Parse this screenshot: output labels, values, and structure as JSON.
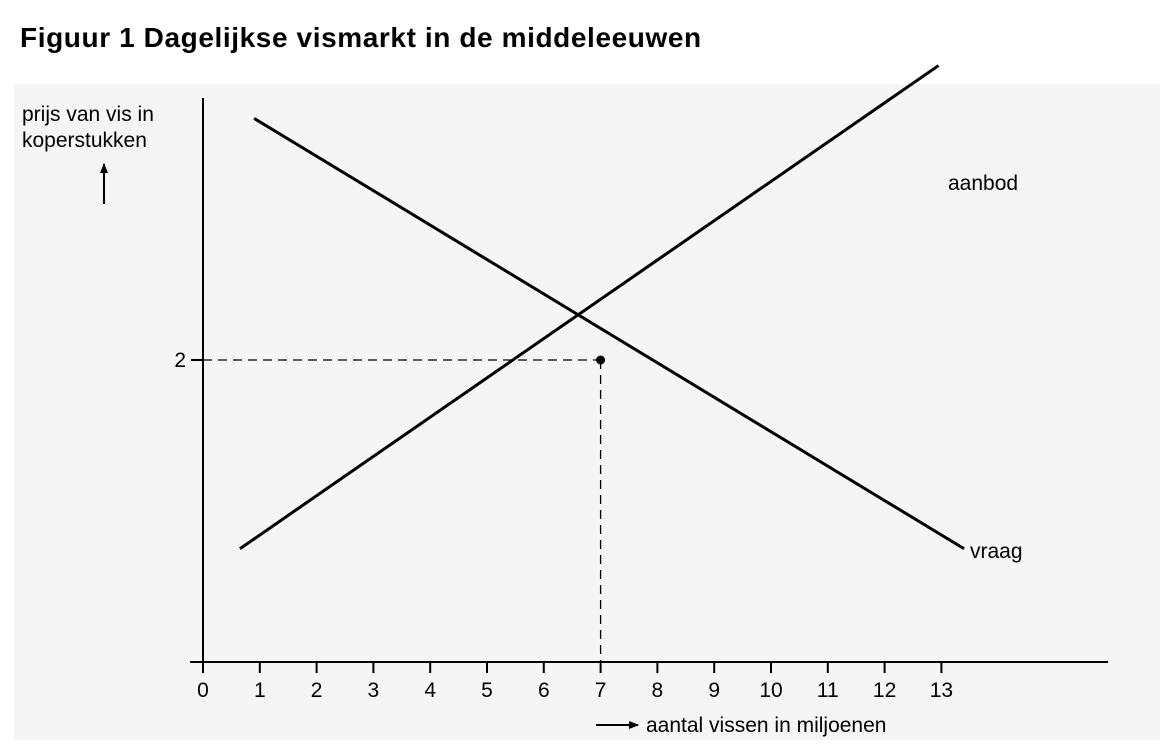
{
  "chart_data": {
    "type": "line",
    "title": "Figuur 1  Dagelijkse vismarkt in de middeleeuwen",
    "ylabel": [
      "prijs van vis in",
      "koperstukken"
    ],
    "xlabel": "aantal vissen in miljoenen",
    "xlim": [
      0,
      15.5
    ],
    "ylim": [
      0,
      5.2
    ],
    "xticks": [
      "0",
      "1",
      "2",
      "3",
      "4",
      "5",
      "6",
      "7",
      "8",
      "9",
      "10",
      "11",
      "12",
      "13"
    ],
    "yticks": [
      {
        "value": 2,
        "label": "2"
      }
    ],
    "equilibrium": {
      "x": 7,
      "y": 2
    },
    "series": [
      {
        "name": "aanbod",
        "points": [
          [
            0.65,
            0.75
          ],
          [
            12.95,
            3.95
          ]
        ]
      },
      {
        "name": "vraag",
        "points": [
          [
            0.9,
            3.6
          ],
          [
            13.4,
            0.75
          ]
        ]
      }
    ],
    "grid": false
  }
}
